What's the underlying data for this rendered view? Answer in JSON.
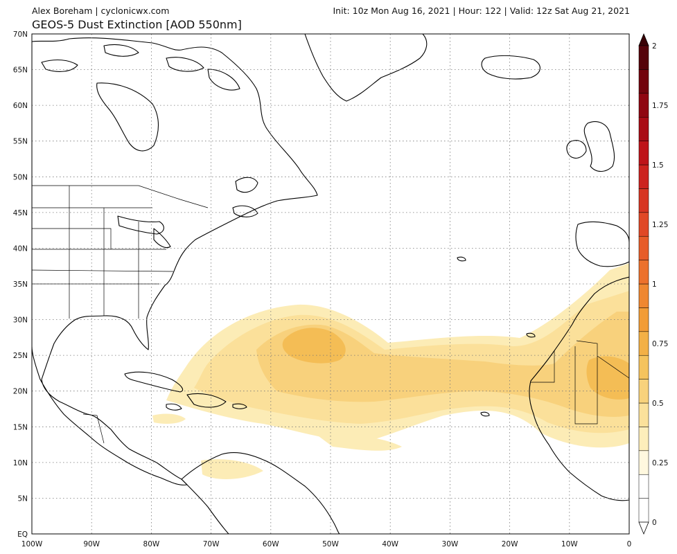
{
  "header": {
    "credit": "Alex Boreham | cyclonicwx.com",
    "run_info": "Init: 10z Mon Aug 16, 2021 | Hour: 122 | Valid: 12z Sat Aug 21, 2021",
    "title": "GEOS-5 Dust Extinction [AOD 550nm]"
  },
  "map": {
    "lat_labels": [
      "70N",
      "65N",
      "60N",
      "55N",
      "50N",
      "45N",
      "40N",
      "35N",
      "30N",
      "25N",
      "20N",
      "15N",
      "10N",
      "5N",
      "EQ"
    ],
    "lon_labels": [
      "100W",
      "90W",
      "80W",
      "70W",
      "60W",
      "50W",
      "40W",
      "30W",
      "20W",
      "10W",
      "0"
    ],
    "land_fill": "#ffffff",
    "ocean_fill": "#ffffff",
    "coastline_color": "#000000",
    "grid_style": "dotted"
  },
  "colorbar": {
    "labels": [
      "2",
      "1.75",
      "1.5",
      "1.25",
      "1",
      "0.75",
      "0.5",
      "0.25",
      "0"
    ],
    "colors": [
      "#ffffff",
      "#ffffff",
      "#fff8df",
      "#fdeebb",
      "#fbe19b",
      "#f8d27c",
      "#f5c35d",
      "#f3b046",
      "#f29c36",
      "#ef8730",
      "#ec712c",
      "#e75c29",
      "#e04826",
      "#d73522",
      "#cc231f",
      "#be141a",
      "#a90b15",
      "#8f0611",
      "#72040d",
      "#55030a"
    ]
  }
}
